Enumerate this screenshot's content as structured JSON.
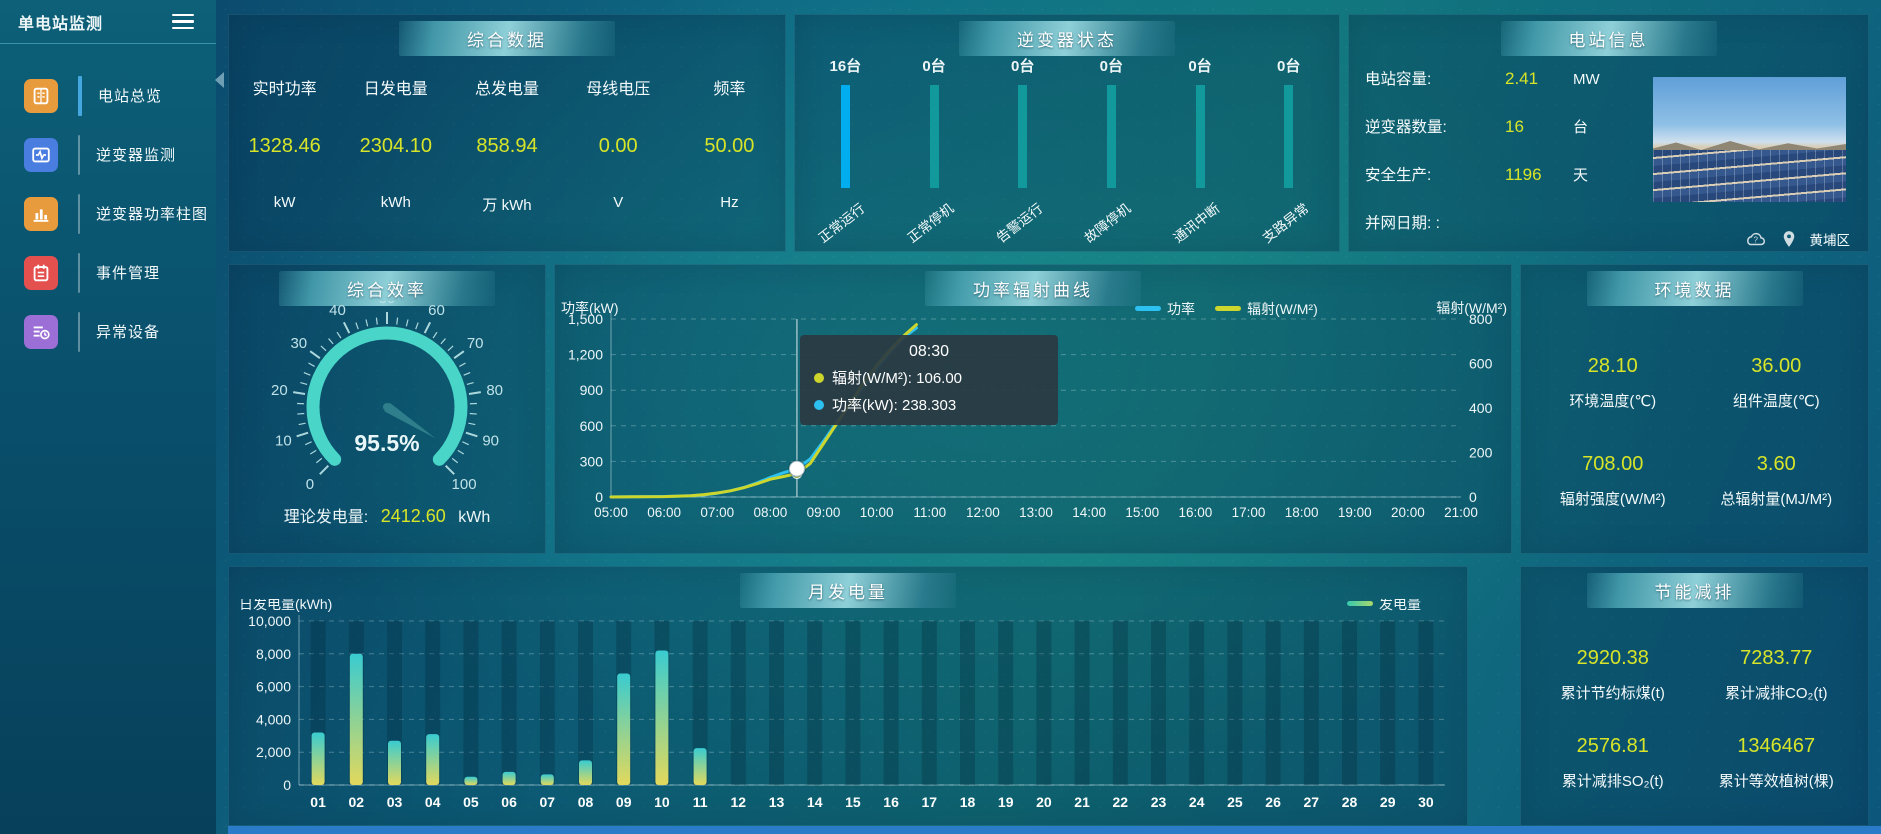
{
  "sidebar": {
    "title": "单电站监测",
    "menu": [
      {
        "label": "电站总览",
        "icon": "station-overview-icon",
        "color": "#e89b3c",
        "active": true
      },
      {
        "label": "逆变器监测",
        "icon": "inverter-monitor-icon",
        "color": "#4a7de0",
        "active": false
      },
      {
        "label": "逆变器功率柱图",
        "icon": "inverter-power-bars-icon",
        "color": "#e89b3c",
        "active": false
      },
      {
        "label": "事件管理",
        "icon": "event-management-icon",
        "color": "#e4504e",
        "active": false
      },
      {
        "label": "异常设备",
        "icon": "abnormal-device-icon",
        "color": "#9b6fd6",
        "active": false
      }
    ]
  },
  "panels": {
    "summary": {
      "title": "综合数据",
      "stats": [
        {
          "label": "实时功率",
          "value": "1328.46",
          "unit": "kW"
        },
        {
          "label": "日发电量",
          "value": "2304.10",
          "unit": "kWh"
        },
        {
          "label": "总发电量",
          "value": "858.94",
          "unit": "万 kWh"
        },
        {
          "label": "母线电压",
          "value": "0.00",
          "unit": "V"
        },
        {
          "label": "频率",
          "value": "50.00",
          "unit": "Hz"
        }
      ]
    },
    "inverter_status": {
      "title": "逆变器状态",
      "items": [
        {
          "count": "16台",
          "label": "正常运行",
          "highlight": true
        },
        {
          "count": "0台",
          "label": "正常停机",
          "highlight": false
        },
        {
          "count": "0台",
          "label": "告警运行",
          "highlight": false
        },
        {
          "count": "0台",
          "label": "故障停机",
          "highlight": false
        },
        {
          "count": "0台",
          "label": "通讯中断",
          "highlight": false
        },
        {
          "count": "0台",
          "label": "支路异常",
          "highlight": false
        }
      ]
    },
    "station_info": {
      "title": "电站信息",
      "rows": [
        {
          "label": "电站容量:",
          "value": "2.41",
          "unit": "MW"
        },
        {
          "label": "逆变器数量:",
          "value": "16",
          "unit": "台"
        },
        {
          "label": "安全生产:",
          "value": "1196",
          "unit": "天"
        },
        {
          "label": "并网日期:  :",
          "value": "",
          "unit": ""
        }
      ],
      "location": "黄埔区"
    },
    "efficiency": {
      "title": "综合效率",
      "gauge": {
        "min": 0,
        "max": 100,
        "value": 95.5,
        "display": "95.5%",
        "major_ticks": [
          0,
          10,
          20,
          30,
          40,
          50,
          60,
          70,
          80,
          90,
          100
        ]
      },
      "footer_label": "理论发电量:",
      "footer_value": "2412.60",
      "footer_unit": "kWh"
    },
    "environment": {
      "title": "环境数据",
      "stats": [
        {
          "value": "28.10",
          "label": "环境温度(℃)"
        },
        {
          "value": "36.00",
          "label": "组件温度(℃)"
        },
        {
          "value": "708.00",
          "label": "辐射强度(W/M²)"
        },
        {
          "value": "3.60",
          "label": "总辐射量(MJ/M²)"
        }
      ]
    },
    "savings": {
      "title": "节能减排",
      "stats": [
        {
          "value": "2920.38",
          "label": "累计节约标煤(t)"
        },
        {
          "value": "7283.77",
          "label": "累计减排CO₂(t)"
        },
        {
          "value": "2576.81",
          "label": "累计减排SO₂(t)"
        },
        {
          "value": "1346467",
          "label": "累计等效植树(棵)"
        }
      ]
    }
  },
  "chart_data": [
    {
      "id": "power_radiation_curve",
      "type": "line",
      "title": "功率辐射曲线",
      "grid": true,
      "legend_position": "top-right",
      "x_range": [
        5,
        21
      ],
      "x_ticks": [
        "05:00",
        "06:00",
        "07:00",
        "08:00",
        "09:00",
        "10:00",
        "11:00",
        "12:00",
        "13:00",
        "14:00",
        "15:00",
        "16:00",
        "17:00",
        "18:00",
        "19:00",
        "20:00",
        "21:00"
      ],
      "left_axis": {
        "label": "功率(kW)",
        "range": [
          0,
          1500
        ],
        "ticks": [
          {
            "v": 0,
            "label": "0"
          },
          {
            "v": 300,
            "label": "300"
          },
          {
            "v": 600,
            "label": "600"
          },
          {
            "v": 900,
            "label": "900"
          },
          {
            "v": 1200,
            "label": "1,200"
          },
          {
            "v": 1500,
            "label": "1,500"
          }
        ]
      },
      "right_axis": {
        "label": "辐射(W/M²)",
        "range": [
          0,
          800
        ],
        "ticks": [
          {
            "v": 0,
            "label": "0"
          },
          {
            "v": 200,
            "label": "200"
          },
          {
            "v": 400,
            "label": "400"
          },
          {
            "v": 600,
            "label": "600"
          },
          {
            "v": 800,
            "label": "800"
          }
        ]
      },
      "series": [
        {
          "name": "功率",
          "color": "#2cc1f0",
          "axis": "left",
          "points": [
            [
              5,
              1
            ],
            [
              5.5,
              2
            ],
            [
              6,
              4
            ],
            [
              6.5,
              10
            ],
            [
              6.75,
              18
            ],
            [
              7,
              32
            ],
            [
              7.25,
              52
            ],
            [
              7.5,
              80
            ],
            [
              7.75,
              120
            ],
            [
              8,
              165
            ],
            [
              8.25,
              205
            ],
            [
              8.5,
              238.303
            ],
            [
              8.75,
              320
            ],
            [
              9,
              470
            ],
            [
              9.25,
              630
            ],
            [
              9.5,
              780
            ],
            [
              9.75,
              930
            ],
            [
              10,
              1080
            ],
            [
              10.25,
              1220
            ],
            [
              10.5,
              1340
            ],
            [
              10.75,
              1425
            ]
          ]
        },
        {
          "name": "辐射(W/M²)",
          "color": "#cdd62c",
          "axis": "right",
          "points": [
            [
              5,
              0
            ],
            [
              5.5,
              1
            ],
            [
              6,
              2
            ],
            [
              6.5,
              6
            ],
            [
              6.75,
              11
            ],
            [
              7,
              18
            ],
            [
              7.25,
              28
            ],
            [
              7.5,
              42
            ],
            [
              7.75,
              60
            ],
            [
              8,
              80
            ],
            [
              8.25,
              92
            ],
            [
              8.5,
              106
            ],
            [
              8.75,
              150
            ],
            [
              9,
              240
            ],
            [
              9.25,
              330
            ],
            [
              9.5,
              420
            ],
            [
              9.75,
              510
            ],
            [
              10,
              590
            ],
            [
              10.25,
              660
            ],
            [
              10.5,
              722
            ],
            [
              10.75,
              775
            ]
          ]
        }
      ],
      "tooltip": {
        "x": 8.5,
        "title": "08:30",
        "rows": [
          {
            "color": "#cdd62c",
            "text": "辐射(W/M²): 106.00"
          },
          {
            "color": "#2cc1f0",
            "text": "功率(kW): 238.303"
          }
        ]
      }
    },
    {
      "id": "monthly_generation",
      "type": "bar",
      "title": "月发电量",
      "ylabel": "日发电量(kWh)",
      "y_axis": {
        "range": [
          0,
          10000
        ],
        "ticks": [
          {
            "v": 0,
            "label": "0"
          },
          {
            "v": 2000,
            "label": "2,000"
          },
          {
            "v": 4000,
            "label": "4,000"
          },
          {
            "v": 6000,
            "label": "6,000"
          },
          {
            "v": 8000,
            "label": "8,000"
          },
          {
            "v": 10000,
            "label": "10,000"
          }
        ]
      },
      "legend": [
        {
          "name": "发电量"
        }
      ],
      "categories": [
        "01",
        "02",
        "03",
        "04",
        "05",
        "06",
        "07",
        "08",
        "09",
        "10",
        "11",
        "12",
        "13",
        "14",
        "15",
        "16",
        "17",
        "18",
        "19",
        "20",
        "21",
        "22",
        "23",
        "24",
        "25",
        "26",
        "27",
        "28",
        "29",
        "30"
      ],
      "values": [
        3200,
        8000,
        2700,
        3100,
        500,
        800,
        650,
        1500,
        6800,
        8200,
        2250,
        0,
        0,
        0,
        0,
        0,
        0,
        0,
        0,
        0,
        0,
        0,
        0,
        0,
        0,
        0,
        0,
        0,
        0,
        0
      ]
    }
  ]
}
